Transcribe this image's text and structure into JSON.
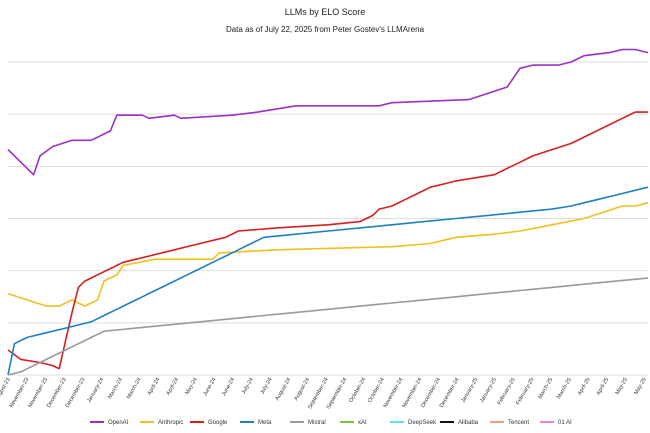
{
  "chart_data": {
    "type": "line",
    "title": "LLMs by ELO Score",
    "subtitle": "Data as of July 22, 2025 from Peter Gostev's LLMArena",
    "xlabel": "",
    "ylabel": "",
    "ylim": [
      0,
      100
    ],
    "grid": "horizontal",
    "legend_position": "bottom",
    "x_ticks": [
      "August-23",
      "November-23",
      "November-23",
      "December-23",
      "December-23",
      "January-24",
      "March-24",
      "March-24",
      "April-24",
      "April-24",
      "May-24",
      "June-24",
      "June-24",
      "July-24",
      "July-24",
      "August-24",
      "August-24",
      "September-24",
      "September-24",
      "October-24",
      "October-24",
      "November-24",
      "November-24",
      "December-24",
      "December-24",
      "January-25",
      "January-25",
      "February-25",
      "February-25",
      "March-25",
      "March-25",
      "April-25",
      "April-25",
      "May-25",
      "May-25"
    ],
    "series": [
      {
        "name": "OpenAI",
        "color": "#9b30c8",
        "points": [
          [
            0,
            72
          ],
          [
            2,
            68
          ],
          [
            4,
            64
          ],
          [
            5,
            70
          ],
          [
            7,
            73
          ],
          [
            10,
            75
          ],
          [
            13,
            75
          ],
          [
            16,
            78
          ],
          [
            17,
            83
          ],
          [
            21,
            83
          ],
          [
            22,
            82
          ],
          [
            26,
            83
          ],
          [
            27,
            82
          ],
          [
            35,
            83
          ],
          [
            39,
            84
          ],
          [
            42,
            85
          ],
          [
            45,
            86
          ],
          [
            58,
            86
          ],
          [
            60,
            87
          ],
          [
            72,
            88
          ],
          [
            78,
            92
          ],
          [
            79,
            95
          ],
          [
            80,
            98
          ],
          [
            82,
            99
          ],
          [
            86,
            99
          ],
          [
            88,
            100
          ],
          [
            90,
            102
          ],
          [
            94,
            103
          ],
          [
            96,
            104
          ],
          [
            98,
            104
          ],
          [
            100,
            103
          ]
        ]
      },
      {
        "name": "Anthropic",
        "color": "#f0c020",
        "points": [
          [
            0,
            26
          ],
          [
            3,
            24
          ],
          [
            6,
            22
          ],
          [
            8,
            22
          ],
          [
            10,
            24
          ],
          [
            12,
            22
          ],
          [
            14,
            24
          ],
          [
            15,
            30
          ],
          [
            16,
            31
          ],
          [
            17,
            32
          ],
          [
            18,
            35
          ],
          [
            23,
            37
          ],
          [
            32,
            37
          ],
          [
            33,
            39
          ],
          [
            42,
            40
          ],
          [
            60,
            41
          ],
          [
            66,
            42
          ],
          [
            70,
            44
          ],
          [
            76,
            45
          ],
          [
            80,
            46
          ],
          [
            85,
            48
          ],
          [
            90,
            50
          ],
          [
            93,
            52
          ],
          [
            96,
            54
          ],
          [
            98,
            54
          ],
          [
            100,
            55
          ]
        ]
      },
      {
        "name": "Google",
        "color": "#d62020",
        "points": [
          [
            0,
            8
          ],
          [
            2,
            5
          ],
          [
            5,
            4
          ],
          [
            7,
            3
          ],
          [
            8,
            2
          ],
          [
            10,
            20
          ],
          [
            11,
            28
          ],
          [
            12,
            30
          ],
          [
            13,
            31
          ],
          [
            14,
            32
          ],
          [
            15,
            33
          ],
          [
            16,
            34
          ],
          [
            18,
            36
          ],
          [
            22,
            38
          ],
          [
            26,
            40
          ],
          [
            30,
            42
          ],
          [
            34,
            44
          ],
          [
            36,
            46
          ],
          [
            42,
            47
          ],
          [
            50,
            48
          ],
          [
            55,
            49
          ],
          [
            57,
            51
          ],
          [
            58,
            53
          ],
          [
            60,
            54
          ],
          [
            62,
            56
          ],
          [
            64,
            58
          ],
          [
            66,
            60
          ],
          [
            68,
            61
          ],
          [
            70,
            62
          ],
          [
            73,
            63
          ],
          [
            76,
            64
          ],
          [
            78,
            66
          ],
          [
            80,
            68
          ],
          [
            82,
            70
          ],
          [
            85,
            72
          ],
          [
            88,
            74
          ],
          [
            90,
            76
          ],
          [
            92,
            78
          ],
          [
            94,
            80
          ],
          [
            96,
            82
          ],
          [
            98,
            84
          ],
          [
            100,
            84
          ]
        ]
      },
      {
        "name": "Meta",
        "color": "#2080c0",
        "points": [
          [
            0,
            0
          ],
          [
            1,
            10
          ],
          [
            3,
            12
          ],
          [
            5,
            13
          ],
          [
            7,
            14
          ],
          [
            9,
            15
          ],
          [
            11,
            16
          ],
          [
            13,
            17
          ],
          [
            14,
            18
          ],
          [
            15,
            19
          ],
          [
            16,
            20
          ],
          [
            17,
            21
          ],
          [
            18,
            22
          ],
          [
            19,
            23
          ],
          [
            20,
            24
          ],
          [
            21,
            25
          ],
          [
            22,
            26
          ],
          [
            24,
            28
          ],
          [
            26,
            30
          ],
          [
            28,
            32
          ],
          [
            30,
            34
          ],
          [
            32,
            36
          ],
          [
            34,
            38
          ],
          [
            36,
            40
          ],
          [
            38,
            42
          ],
          [
            40,
            44
          ],
          [
            45,
            45
          ],
          [
            50,
            46
          ],
          [
            55,
            47
          ],
          [
            60,
            48
          ],
          [
            65,
            49
          ],
          [
            70,
            50
          ],
          [
            75,
            51
          ],
          [
            80,
            52
          ],
          [
            85,
            53
          ],
          [
            88,
            54
          ],
          [
            90,
            55
          ],
          [
            92,
            56
          ],
          [
            94,
            57
          ],
          [
            96,
            58
          ],
          [
            98,
            59
          ],
          [
            100,
            60
          ]
        ]
      },
      {
        "name": "Mistral",
        "color": "#999999",
        "points": [
          [
            0,
            0
          ],
          [
            2,
            1
          ],
          [
            3,
            2
          ],
          [
            4,
            3
          ],
          [
            5,
            4
          ],
          [
            6,
            5
          ],
          [
            7,
            6
          ],
          [
            8,
            7
          ],
          [
            9,
            8
          ],
          [
            10,
            9
          ],
          [
            11,
            10
          ],
          [
            12,
            11
          ],
          [
            13,
            12
          ],
          [
            14,
            13
          ],
          [
            15,
            14
          ],
          [
            20,
            15
          ],
          [
            25,
            16
          ],
          [
            30,
            17
          ],
          [
            35,
            18
          ],
          [
            40,
            19
          ],
          [
            45,
            20
          ],
          [
            50,
            21
          ],
          [
            55,
            22
          ],
          [
            60,
            23
          ],
          [
            65,
            24
          ],
          [
            70,
            25
          ],
          [
            75,
            26
          ],
          [
            80,
            27
          ],
          [
            85,
            28
          ],
          [
            90,
            29
          ],
          [
            95,
            30
          ],
          [
            100,
            31
          ]
        ]
      }
    ],
    "legend": [
      "OpenAI",
      "Anthropic",
      "Google",
      "Meta",
      "Mistral",
      "xAI",
      "DeepSeek",
      "Alibaba",
      "Tencent",
      "01 AI"
    ],
    "legend_colors": [
      "#9b30c8",
      "#f0c020",
      "#d62020",
      "#2080c0",
      "#999999",
      "#7cc040",
      "#60e0f0",
      "#111111",
      "#e8a080",
      "#f080c8"
    ]
  }
}
